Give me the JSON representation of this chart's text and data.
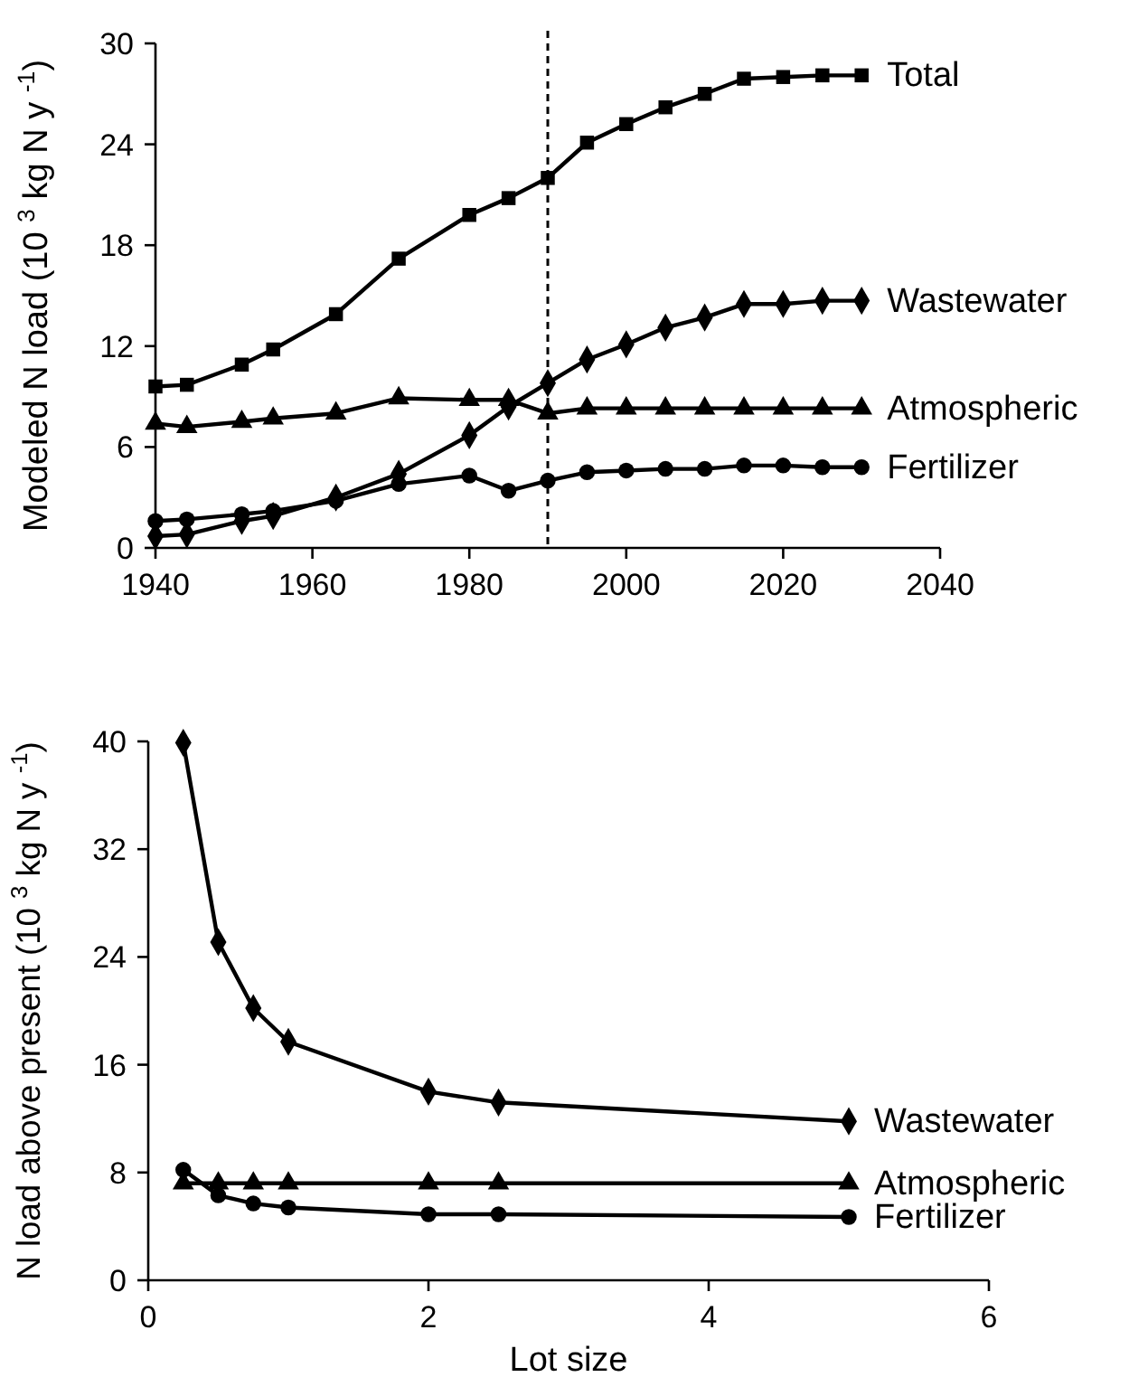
{
  "chart_data": [
    {
      "type": "line",
      "ylabel": "Modeled N load (10 $^{3}$ kg N y $^{-1}$)",
      "xlim": [
        1940,
        2040
      ],
      "xticks": [
        1940,
        1960,
        1980,
        2000,
        2020,
        2040
      ],
      "ylim": [
        0,
        30
      ],
      "yticks": [
        0,
        6,
        12,
        18,
        24,
        30
      ],
      "grid": false,
      "x": [
        1940,
        1944,
        1951,
        1955,
        1963,
        1971,
        1980,
        1985,
        1990,
        1995,
        2000,
        2005,
        2010,
        2015,
        2020,
        2025,
        2030
      ],
      "ref_lines": [
        {
          "axis": "x",
          "value": 1990,
          "line_style": "dashed",
          "color": "#000000"
        }
      ],
      "series": [
        {
          "name": "Total",
          "color": "#000000",
          "marker": "square",
          "values": [
            9.6,
            9.7,
            10.9,
            11.8,
            13.9,
            17.2,
            19.8,
            20.8,
            22.0,
            24.1,
            25.2,
            26.2,
            27.0,
            27.9,
            28.0,
            28.1,
            28.1
          ]
        },
        {
          "name": "Wastewater",
          "color": "#000000",
          "marker": "diamond",
          "values": [
            0.7,
            0.8,
            1.6,
            1.9,
            3.0,
            4.4,
            6.7,
            8.4,
            9.8,
            11.2,
            12.1,
            13.1,
            13.7,
            14.5,
            14.5,
            14.7,
            14.7
          ]
        },
        {
          "name": "Atmospheric",
          "color": "#000000",
          "marker": "triangle",
          "values": [
            7.4,
            7.2,
            7.5,
            7.7,
            8.0,
            8.9,
            8.8,
            8.8,
            8.0,
            8.3,
            8.3,
            8.3,
            8.3,
            8.3,
            8.3,
            8.3,
            8.3
          ]
        },
        {
          "name": "Fertilizer",
          "color": "#000000",
          "marker": "circle",
          "values": [
            1.6,
            1.7,
            2.0,
            2.2,
            2.8,
            3.8,
            4.3,
            3.4,
            4.0,
            4.5,
            4.6,
            4.7,
            4.7,
            4.9,
            4.9,
            4.8,
            4.8
          ]
        }
      ]
    },
    {
      "type": "line",
      "xlabel": "Lot size",
      "ylabel": "N load above present  (10 $^{3}$ kg N y $^{-1}$)",
      "xlim": [
        0,
        6
      ],
      "xticks": [
        0,
        2,
        4,
        6
      ],
      "ylim": [
        0,
        40
      ],
      "yticks": [
        0,
        8,
        16,
        24,
        32,
        40
      ],
      "grid": false,
      "legend": "right",
      "x": [
        0.25,
        0.5,
        0.75,
        1,
        2,
        2.5,
        5
      ],
      "series": [
        {
          "name": "Wastewater",
          "color": "#000000",
          "marker": "diamond",
          "values": [
            39.9,
            25.1,
            20.2,
            17.7,
            14.0,
            13.2,
            11.8
          ]
        },
        {
          "name": "Atmospheric",
          "color": "#000000",
          "marker": "triangle",
          "values": [
            7.2,
            7.2,
            7.2,
            7.2,
            7.2,
            7.2,
            7.2
          ]
        },
        {
          "name": "Fertilizer",
          "color": "#000000",
          "marker": "circle",
          "values": [
            8.2,
            6.3,
            5.7,
            5.4,
            4.9,
            4.9,
            4.7
          ]
        }
      ]
    }
  ]
}
